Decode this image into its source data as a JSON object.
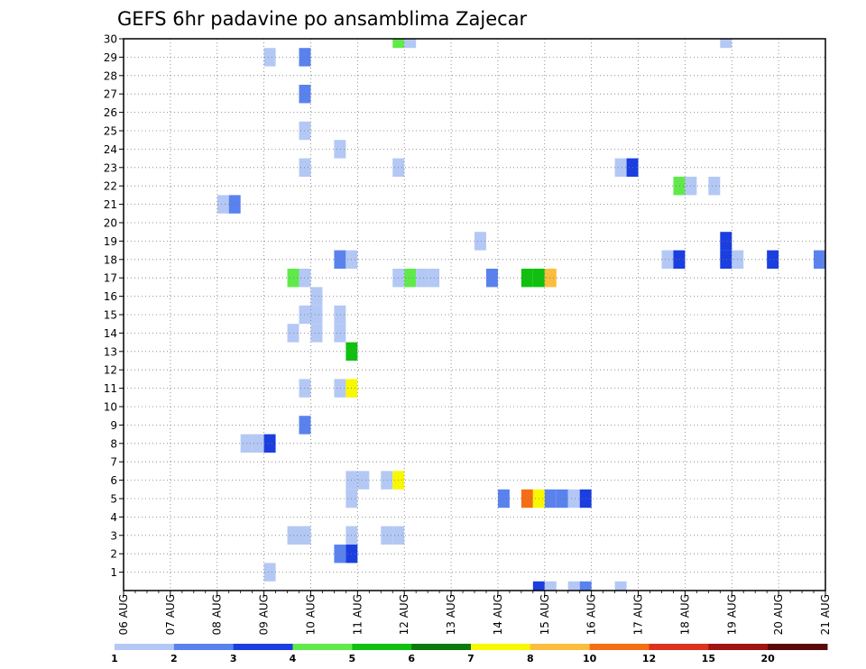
{
  "chart_data": {
    "type": "heatmap",
    "title": "GEFS 6hr padavine po ansamblima Zajecar",
    "xlabel": "",
    "ylabel": "",
    "x_tick_labels": [
      "06 AUG",
      "07 AUG",
      "08 AUG",
      "09 AUG",
      "10 AUG",
      "11 AUG",
      "12 AUG",
      "13 AUG",
      "14 AUG",
      "15 AUG",
      "16 AUG",
      "17 AUG",
      "18 AUG",
      "19 AUG",
      "20 AUG",
      "21 AUG"
    ],
    "xlim_days": [
      0,
      15
    ],
    "y_tick_labels": [
      "1",
      "2",
      "3",
      "4",
      "5",
      "6",
      "7",
      "8",
      "9",
      "10",
      "11",
      "12",
      "13",
      "14",
      "15",
      "16",
      "17",
      "18",
      "19",
      "20",
      "21",
      "22",
      "23",
      "24",
      "25",
      "26",
      "27",
      "28",
      "29",
      "30"
    ],
    "ylim": [
      0,
      30
    ],
    "grid": true,
    "legend": {
      "placement": "bottom",
      "thresholds": [
        "1",
        "2",
        "3",
        "4",
        "5",
        "6",
        "7",
        "8",
        "10",
        "12",
        "15",
        "20"
      ],
      "colors": [
        "#b4c8f5",
        "#5a82ee",
        "#1a3ee0",
        "#60ea4a",
        "#10c010",
        "#0a7a0a",
        "#f8f800",
        "#fabe3c",
        "#f56e14",
        "#dc321e",
        "#a01414",
        "#5a0a0a"
      ]
    },
    "cells": [
      {
        "member": 30,
        "day": 5.75,
        "precip": 4
      },
      {
        "member": 30,
        "day": 6.0,
        "precip": 1
      },
      {
        "member": 30,
        "day": 12.75,
        "precip": 1
      },
      {
        "member": 29,
        "day": 3.0,
        "precip": 1
      },
      {
        "member": 29,
        "day": 3.75,
        "precip": 2
      },
      {
        "member": 27,
        "day": 3.75,
        "precip": 2
      },
      {
        "member": 25,
        "day": 3.75,
        "precip": 1
      },
      {
        "member": 24,
        "day": 4.5,
        "precip": 1
      },
      {
        "member": 23,
        "day": 3.75,
        "precip": 1
      },
      {
        "member": 23,
        "day": 5.75,
        "precip": 1
      },
      {
        "member": 23,
        "day": 10.5,
        "precip": 1
      },
      {
        "member": 23,
        "day": 10.75,
        "precip": 3
      },
      {
        "member": 22,
        "day": 11.75,
        "precip": 4
      },
      {
        "member": 22,
        "day": 12.0,
        "precip": 1
      },
      {
        "member": 22,
        "day": 12.5,
        "precip": 1
      },
      {
        "member": 21,
        "day": 2.0,
        "precip": 1
      },
      {
        "member": 21,
        "day": 2.25,
        "precip": 2
      },
      {
        "member": 19,
        "day": 7.5,
        "precip": 1
      },
      {
        "member": 19,
        "day": 12.75,
        "precip": 3
      },
      {
        "member": 18,
        "day": 4.5,
        "precip": 2
      },
      {
        "member": 18,
        "day": 4.75,
        "precip": 1
      },
      {
        "member": 18,
        "day": 11.5,
        "precip": 1
      },
      {
        "member": 18,
        "day": 11.75,
        "precip": 3
      },
      {
        "member": 18,
        "day": 12.75,
        "precip": 3
      },
      {
        "member": 18,
        "day": 13.0,
        "precip": 1
      },
      {
        "member": 18,
        "day": 13.75,
        "precip": 3
      },
      {
        "member": 18,
        "day": 14.75,
        "precip": 2
      },
      {
        "member": 17,
        "day": 3.5,
        "precip": 4
      },
      {
        "member": 17,
        "day": 3.75,
        "precip": 1
      },
      {
        "member": 17,
        "day": 5.75,
        "precip": 1
      },
      {
        "member": 17,
        "day": 6.0,
        "precip": 4
      },
      {
        "member": 17,
        "day": 6.25,
        "precip": 1
      },
      {
        "member": 17,
        "day": 6.5,
        "precip": 1
      },
      {
        "member": 17,
        "day": 7.75,
        "precip": 2
      },
      {
        "member": 17,
        "day": 8.5,
        "precip": 5
      },
      {
        "member": 17,
        "day": 8.75,
        "precip": 5
      },
      {
        "member": 17,
        "day": 9.0,
        "precip": 8
      },
      {
        "member": 16,
        "day": 4.0,
        "precip": 1
      },
      {
        "member": 15,
        "day": 3.75,
        "precip": 1
      },
      {
        "member": 15,
        "day": 4.0,
        "precip": 1
      },
      {
        "member": 15,
        "day": 4.5,
        "precip": 1
      },
      {
        "member": 14,
        "day": 3.5,
        "precip": 1
      },
      {
        "member": 14,
        "day": 4.0,
        "precip": 1
      },
      {
        "member": 14,
        "day": 4.5,
        "precip": 1
      },
      {
        "member": 13,
        "day": 4.75,
        "precip": 5
      },
      {
        "member": 11,
        "day": 3.75,
        "precip": 1
      },
      {
        "member": 11,
        "day": 4.5,
        "precip": 1
      },
      {
        "member": 11,
        "day": 4.75,
        "precip": 7
      },
      {
        "member": 9,
        "day": 3.75,
        "precip": 2
      },
      {
        "member": 8,
        "day": 2.5,
        "precip": 1
      },
      {
        "member": 8,
        "day": 2.75,
        "precip": 1
      },
      {
        "member": 8,
        "day": 3.0,
        "precip": 3
      },
      {
        "member": 6,
        "day": 4.75,
        "precip": 1
      },
      {
        "member": 6,
        "day": 5.0,
        "precip": 1
      },
      {
        "member": 6,
        "day": 5.5,
        "precip": 1
      },
      {
        "member": 6,
        "day": 5.75,
        "precip": 7
      },
      {
        "member": 5,
        "day": 4.75,
        "precip": 1
      },
      {
        "member": 5,
        "day": 8.0,
        "precip": 2
      },
      {
        "member": 5,
        "day": 8.5,
        "precip": 10
      },
      {
        "member": 5,
        "day": 8.75,
        "precip": 7
      },
      {
        "member": 5,
        "day": 9.0,
        "precip": 2
      },
      {
        "member": 5,
        "day": 9.25,
        "precip": 2
      },
      {
        "member": 5,
        "day": 9.5,
        "precip": 1
      },
      {
        "member": 5,
        "day": 9.75,
        "precip": 3
      },
      {
        "member": 3,
        "day": 3.5,
        "precip": 1
      },
      {
        "member": 3,
        "day": 3.75,
        "precip": 1
      },
      {
        "member": 3,
        "day": 4.75,
        "precip": 1
      },
      {
        "member": 3,
        "day": 5.5,
        "precip": 1
      },
      {
        "member": 3,
        "day": 5.75,
        "precip": 1
      },
      {
        "member": 2,
        "day": 4.5,
        "precip": 2
      },
      {
        "member": 2,
        "day": 4.75,
        "precip": 3
      },
      {
        "member": 1,
        "day": 3.0,
        "precip": 1
      },
      {
        "member": 0,
        "day": 8.75,
        "precip": 3
      },
      {
        "member": 0,
        "day": 9.0,
        "precip": 1
      },
      {
        "member": 0,
        "day": 9.5,
        "precip": 1
      },
      {
        "member": 0,
        "day": 9.75,
        "precip": 2
      },
      {
        "member": 0,
        "day": 10.5,
        "precip": 1
      }
    ]
  }
}
